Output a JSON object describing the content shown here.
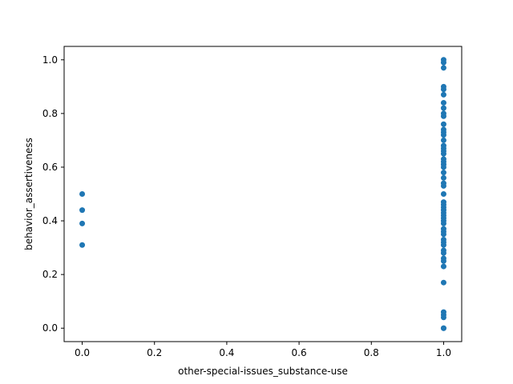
{
  "chart_data": {
    "type": "scatter",
    "title": "",
    "xlabel": "other-special-issues_substance-use",
    "ylabel": "behavior_assertiveness",
    "xlim": [
      -0.05,
      1.05
    ],
    "ylim": [
      -0.05,
      1.05
    ],
    "xticks": [
      0.0,
      0.2,
      0.4,
      0.6,
      0.8,
      1.0
    ],
    "yticks": [
      0.0,
      0.2,
      0.4,
      0.6,
      0.8,
      1.0
    ],
    "xtick_labels": [
      "0.0",
      "0.2",
      "0.4",
      "0.6",
      "0.8",
      "1.0"
    ],
    "ytick_labels": [
      "0.0",
      "0.2",
      "0.4",
      "0.6",
      "0.8",
      "1.0"
    ],
    "grid": false,
    "marker_color": "#1f77b4",
    "series": [
      {
        "x": [
          0,
          0,
          0,
          0,
          1,
          1,
          1,
          1,
          1,
          1,
          1,
          1,
          1,
          1,
          1,
          1,
          1,
          1,
          1,
          1,
          1,
          1,
          1,
          1,
          1,
          1,
          1,
          1,
          1,
          1,
          1,
          1,
          1,
          1,
          1,
          1,
          1,
          1,
          1,
          1,
          1,
          1,
          1,
          1,
          1,
          1,
          1,
          1,
          1,
          1,
          1,
          1,
          1,
          1,
          1,
          1,
          1,
          1
        ],
        "y": [
          0.5,
          0.44,
          0.39,
          0.31,
          1.0,
          0.99,
          0.97,
          0.9,
          0.89,
          0.87,
          0.84,
          0.82,
          0.8,
          0.76,
          0.74,
          0.72,
          0.7,
          0.68,
          0.66,
          0.65,
          0.63,
          0.62,
          0.61,
          0.6,
          0.58,
          0.54,
          0.53,
          0.5,
          0.47,
          0.45,
          0.44,
          0.43,
          0.41,
          0.4,
          0.39,
          0.37,
          0.36,
          0.35,
          0.33,
          0.32,
          0.31,
          0.29,
          0.28,
          0.26,
          0.25,
          0.23,
          0.17,
          0.06,
          0.05,
          0.04,
          0.0,
          0.0,
          0.46,
          0.42,
          0.67,
          0.73,
          0.79,
          0.56
        ]
      }
    ]
  }
}
